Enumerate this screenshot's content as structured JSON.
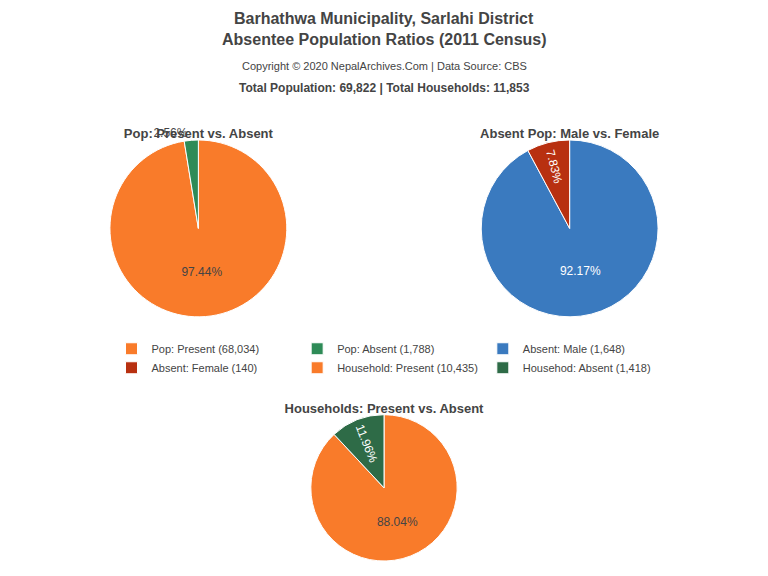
{
  "title": [
    "Barhathwa Municipality, Sarlahi District",
    "Absentee Population Ratios (2011 Census)"
  ],
  "subtitle": [
    "Copyright © 2020 NepalArchives.Com | Data Source: CBS",
    "Total Population: 69,822 | Total Households: 11,853"
  ],
  "chart_data": [
    {
      "type": "pie",
      "title": "Pop: Present vs. Absent",
      "categories": [
        "Pop: Present (68,034)",
        "Pop: Absent (1,788)"
      ],
      "values": [
        97.44,
        2.56
      ],
      "value_labels": [
        "97.44%",
        "2.56%"
      ],
      "colors": [
        "#f97b2a",
        "#2e8b57"
      ],
      "data_labels": true
    },
    {
      "type": "pie",
      "title": "Absent Pop: Male vs. Female",
      "categories": [
        "Absent: Male (1,648)",
        "Absent: Female (140)"
      ],
      "values": [
        92.17,
        7.83
      ],
      "value_labels": [
        "92.17%",
        "7.83%"
      ],
      "colors": [
        "#3a7abf",
        "#b83010"
      ],
      "data_labels": true
    },
    {
      "type": "pie",
      "title": "Households: Present vs. Absent",
      "categories": [
        "Household: Present (10,435)",
        "Househod: Absent (1,418)"
      ],
      "values": [
        88.04,
        11.96
      ],
      "value_labels": [
        "88.04%",
        "11.96%"
      ],
      "colors": [
        "#f97b2a",
        "#2e6b47"
      ],
      "data_labels": true
    }
  ]
}
